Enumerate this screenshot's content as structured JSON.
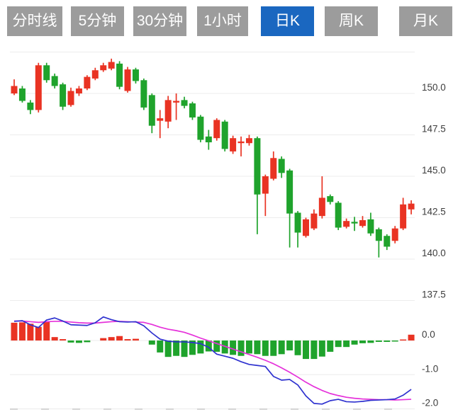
{
  "tabs": {
    "items": [
      {
        "label": "分时线",
        "active": false
      },
      {
        "label": "5分钟",
        "active": false
      },
      {
        "label": "30分钟",
        "active": false
      },
      {
        "label": "1小时",
        "active": false
      },
      {
        "label": "日K",
        "active": true
      },
      {
        "label": "周K",
        "active": false
      },
      {
        "label": "月K",
        "active": false
      }
    ]
  },
  "chart_data": {
    "type": "candlestick-with-macd",
    "period": "日K",
    "price_panel": {
      "ylim": [
        137.0,
        152.5
      ],
      "grid": true,
      "ticks": [
        {
          "value": 152.5,
          "label": ""
        },
        {
          "value": 150.0,
          "label": "150.0"
        },
        {
          "value": 147.5,
          "label": "147.5"
        },
        {
          "value": 145.0,
          "label": "145.0"
        },
        {
          "value": 142.5,
          "label": "142.5"
        },
        {
          "value": 140.0,
          "label": "140.0"
        },
        {
          "value": 137.5,
          "label": "137.5"
        }
      ],
      "ohlc_order": [
        "open",
        "close",
        "low",
        "high"
      ],
      "ohlc": [
        [
          150.0,
          150.45,
          149.9,
          150.85
        ],
        [
          150.3,
          149.55,
          149.45,
          150.45
        ],
        [
          149.45,
          149.0,
          148.75,
          149.6
        ],
        [
          149.0,
          151.7,
          148.85,
          151.85
        ],
        [
          151.7,
          150.8,
          150.65,
          151.85
        ],
        [
          151.05,
          150.45,
          150.3,
          151.2
        ],
        [
          150.55,
          149.2,
          149.0,
          150.65
        ],
        [
          149.3,
          150.15,
          149.2,
          150.35
        ],
        [
          150.0,
          150.3,
          149.85,
          150.45
        ],
        [
          150.3,
          151.0,
          150.2,
          151.1
        ],
        [
          150.9,
          151.4,
          150.8,
          151.55
        ],
        [
          151.4,
          151.7,
          151.3,
          151.85
        ],
        [
          151.5,
          151.9,
          151.4,
          152.1
        ],
        [
          151.8,
          150.4,
          150.25,
          151.95
        ],
        [
          150.15,
          151.45,
          150.05,
          151.6
        ],
        [
          151.45,
          150.75,
          150.6,
          151.55
        ],
        [
          150.8,
          149.15,
          149.0,
          150.9
        ],
        [
          149.9,
          148.05,
          147.6,
          150.0
        ],
        [
          148.35,
          148.5,
          147.3,
          149.0
        ],
        [
          148.3,
          149.6,
          147.9,
          149.85
        ],
        [
          149.45,
          149.55,
          148.4,
          150.0
        ],
        [
          149.6,
          149.25,
          149.1,
          149.8
        ],
        [
          149.4,
          148.55,
          148.4,
          149.5
        ],
        [
          148.6,
          147.2,
          147.05,
          148.7
        ],
        [
          147.4,
          147.05,
          146.6,
          147.8
        ],
        [
          147.3,
          148.4,
          147.15,
          148.5
        ],
        [
          148.3,
          146.65,
          146.5,
          148.4
        ],
        [
          146.5,
          147.3,
          146.35,
          147.45
        ],
        [
          147.0,
          147.1,
          146.2,
          147.4
        ],
        [
          147.0,
          147.3,
          146.85,
          147.5
        ],
        [
          147.3,
          143.9,
          141.5,
          147.4
        ],
        [
          143.95,
          145.0,
          142.6,
          145.1
        ],
        [
          144.85,
          146.1,
          144.75,
          146.5
        ],
        [
          146.05,
          145.2,
          144.9,
          146.2
        ],
        [
          145.35,
          142.75,
          140.7,
          145.45
        ],
        [
          142.8,
          141.6,
          140.7,
          142.9
        ],
        [
          141.4,
          142.4,
          141.3,
          142.5
        ],
        [
          141.85,
          142.75,
          141.75,
          143.0
        ],
        [
          142.6,
          143.7,
          142.45,
          145.0
        ],
        [
          143.8,
          143.45,
          143.3,
          143.9
        ],
        [
          143.4,
          141.9,
          141.75,
          143.5
        ],
        [
          141.95,
          142.3,
          141.85,
          142.45
        ],
        [
          142.25,
          142.15,
          141.7,
          142.55
        ],
        [
          142.0,
          142.35,
          141.9,
          142.6
        ],
        [
          142.4,
          141.55,
          141.4,
          142.8
        ],
        [
          141.8,
          141.1,
          140.1,
          141.9
        ],
        [
          141.4,
          140.75,
          140.55,
          141.5
        ],
        [
          141.1,
          141.85,
          140.95,
          142.0
        ],
        [
          141.85,
          143.3,
          141.75,
          143.7
        ],
        [
          143.0,
          143.35,
          142.7,
          143.55
        ]
      ]
    },
    "macd_panel": {
      "ylim": [
        -2.0,
        0.75
      ],
      "ticks": [
        {
          "value": 0.0,
          "label": "0.0"
        },
        {
          "value": -1.0,
          "label": "-1.0"
        },
        {
          "value": -2.0,
          "label": "-2.0"
        }
      ],
      "histogram": [
        0.52,
        0.53,
        0.49,
        0.4,
        0.54,
        0.1,
        0.04,
        -0.06,
        -0.07,
        -0.05,
        0.0,
        0.07,
        0.1,
        0.13,
        0.04,
        0.05,
        0.0,
        -0.12,
        -0.35,
        -0.48,
        -0.45,
        -0.48,
        -0.42,
        -0.38,
        -0.32,
        -0.33,
        -0.38,
        -0.42,
        -0.45,
        -0.38,
        -0.4,
        -0.45,
        -0.45,
        -0.4,
        -0.29,
        -0.43,
        -0.54,
        -0.54,
        -0.47,
        -0.33,
        -0.19,
        -0.19,
        -0.12,
        -0.08,
        -0.07,
        -0.04,
        -0.04,
        -0.03,
        0.03,
        0.17
      ],
      "dif": [
        0.56,
        0.58,
        0.46,
        0.38,
        0.6,
        0.66,
        0.57,
        0.46,
        0.45,
        0.44,
        0.52,
        0.69,
        0.61,
        0.55,
        0.54,
        0.55,
        0.43,
        0.22,
        0.04,
        -0.02,
        -0.04,
        -0.04,
        -0.06,
        -0.09,
        -0.2,
        -0.4,
        -0.46,
        -0.52,
        -0.62,
        -0.7,
        -0.73,
        -0.76,
        -1.05,
        -1.16,
        -1.14,
        -1.3,
        -1.62,
        -1.84,
        -1.86,
        -1.76,
        -1.72,
        -1.79,
        -1.8,
        -1.78,
        -1.75,
        -1.74,
        -1.73,
        -1.71,
        -1.6,
        -1.43
      ],
      "dea": [
        0.57,
        0.57,
        0.55,
        0.53,
        0.55,
        0.56,
        0.56,
        0.54,
        0.52,
        0.51,
        0.51,
        0.53,
        0.55,
        0.56,
        0.55,
        0.54,
        0.53,
        0.47,
        0.39,
        0.33,
        0.29,
        0.24,
        0.16,
        0.07,
        -0.01,
        -0.09,
        -0.17,
        -0.25,
        -0.33,
        -0.41,
        -0.49,
        -0.58,
        -0.68,
        -0.8,
        -0.93,
        -1.07,
        -1.22,
        -1.35,
        -1.46,
        -1.55,
        -1.61,
        -1.66,
        -1.69,
        -1.71,
        -1.72,
        -1.73,
        -1.73,
        -1.74,
        -1.73,
        -1.72
      ]
    },
    "colors": {
      "up": "#e93323",
      "down": "#1fa32c",
      "dif_line": "#2e31cf",
      "dea_line": "#e531da",
      "grid": "#ececec",
      "axis_label": "#3d3d3d",
      "tab_active_bg": "#1a67c0",
      "tab_inactive_bg": "#9c9c9c"
    }
  }
}
